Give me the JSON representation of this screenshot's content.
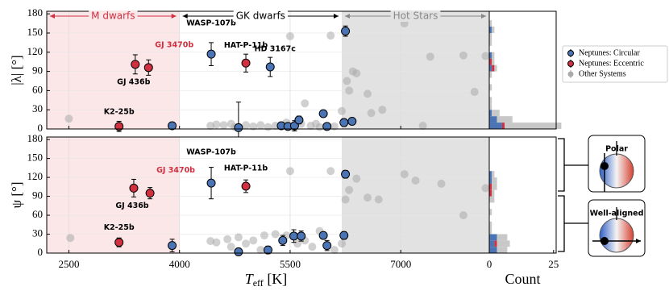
{
  "chart_data": [
    {
      "type": "scatter",
      "y_label": "|λ| [°]",
      "xlim": [
        2200,
        8200
      ],
      "ylim": [
        0,
        184
      ],
      "yticks": [
        0,
        30,
        60,
        90,
        120,
        150,
        180
      ],
      "xticks": [
        2500,
        4000,
        5500,
        7000
      ],
      "grid": true,
      "series": [
        {
          "name": "Neptunes: Circular",
          "color": "#4a74b4",
          "x": [
            3900,
            4430,
            4800,
            5230,
            5380,
            5470,
            5560,
            5620,
            5950,
            6000,
            6230,
            6250,
            6340
          ],
          "values": [
            5,
            117,
            2,
            97,
            5,
            4,
            5,
            14,
            24,
            4,
            10,
            153,
            12
          ],
          "errors": [
            4,
            18,
            40,
            15,
            4,
            3,
            8,
            6,
            5,
            4,
            6,
            8,
            5
          ],
          "point_labels": [
            null,
            "WASP-107b",
            null,
            "HD 3167c",
            null,
            null,
            null,
            null,
            null,
            null,
            null,
            null,
            null
          ]
        },
        {
          "name": "Neptunes: Eccentric",
          "color": "#d03040",
          "x": [
            3180,
            3400,
            3580,
            4900
          ],
          "values": [
            4,
            101,
            96,
            103
          ],
          "errors": [
            8,
            15,
            12,
            14
          ],
          "point_labels": [
            "K2-25b",
            "GJ 436b",
            "GJ 3470b",
            "HAT-P-11b"
          ]
        },
        {
          "name": "Other Systems",
          "color": "#aaaaaa",
          "x": [
            2500,
            4420,
            4500,
            4600,
            4700,
            4750,
            4900,
            5000,
            5100,
            5200,
            5300,
            5450,
            5500,
            5550,
            5650,
            5700,
            5780,
            5850,
            5900,
            6050,
            6100,
            6200,
            6270,
            6300,
            6350,
            6400,
            6550,
            6600,
            6750,
            7050,
            7300,
            7400,
            7850,
            8000,
            8150
          ],
          "values": [
            16,
            5,
            7,
            6,
            8,
            3,
            6,
            4,
            6,
            3,
            5,
            10,
            145,
            2,
            8,
            40,
            5,
            8,
            3,
            146,
            4,
            28,
            75,
            60,
            90,
            87,
            55,
            25,
            30,
            165,
            5,
            113,
            115,
            58,
            114
          ]
        }
      ]
    },
    {
      "type": "scatter",
      "y_label": "ψ [°]",
      "x_label": "T",
      "x_label_sub": "eff",
      "x_label_unit": " [K]",
      "xlim": [
        2200,
        8200
      ],
      "ylim": [
        0,
        184
      ],
      "yticks": [
        0,
        30,
        60,
        90,
        120,
        150,
        180
      ],
      "xticks": [
        2500,
        4000,
        5500,
        7000
      ],
      "grid": true,
      "series": [
        {
          "name": "Neptunes: Circular",
          "color": "#4a74b4",
          "x": [
            3900,
            4430,
            4800,
            5200,
            5400,
            5550,
            5650,
            5950,
            6000,
            6230,
            6250
          ],
          "values": [
            12,
            111,
            2,
            5,
            20,
            27,
            27,
            28,
            12,
            28,
            125
          ],
          "errors": [
            10,
            25,
            3,
            6,
            8,
            10,
            8,
            5,
            8,
            6,
            6
          ],
          "point_labels": [
            null,
            "WASP-107b",
            null,
            null,
            null,
            null,
            null,
            null,
            null,
            null,
            null
          ]
        },
        {
          "name": "Neptunes: Eccentric",
          "color": "#d03040",
          "x": [
            3180,
            3380,
            3600,
            4900
          ],
          "values": [
            17,
            103,
            95,
            106
          ],
          "errors": [
            7,
            14,
            9,
            10
          ],
          "point_labels": [
            "K2-25b",
            "GJ 436b",
            "GJ 3470b",
            "HAT-P-11b"
          ]
        },
        {
          "name": "Other Systems",
          "color": "#aaaaaa",
          "x": [
            2520,
            4420,
            4500,
            4650,
            4700,
            4800,
            4900,
            5000,
            5100,
            5150,
            5300,
            5450,
            5500,
            5600,
            5700,
            5800,
            5900,
            6050,
            6100,
            6200,
            6250,
            6300,
            6400,
            6550,
            6700,
            7050,
            7200,
            7550,
            7850,
            8150
          ],
          "values": [
            24,
            19,
            17,
            22,
            10,
            25,
            15,
            20,
            5,
            28,
            30,
            28,
            130,
            15,
            20,
            10,
            35,
            130,
            5,
            15,
            85,
            100,
            118,
            88,
            85,
            125,
            115,
            110,
            60,
            103
          ]
        }
      ]
    },
    {
      "type": "hist",
      "xlim": [
        0,
        26
      ],
      "ylim": [
        0,
        184
      ],
      "bins": [
        0,
        10,
        20,
        30,
        40,
        50,
        60,
        70,
        80,
        90,
        100,
        110,
        120,
        130,
        140,
        150,
        160,
        170,
        180
      ],
      "series": [
        {
          "color": "#4a74b4",
          "counts": [
            5,
            3,
            1,
            0,
            0,
            0,
            0,
            0,
            0,
            1,
            0,
            1,
            0,
            0,
            0,
            1,
            0,
            0
          ]
        },
        {
          "color": "#d03040",
          "counts": [
            1,
            0,
            0,
            0,
            0,
            0,
            0,
            0,
            0,
            1,
            1,
            0,
            0,
            0,
            0,
            0,
            0,
            0
          ]
        },
        {
          "color": "#c8c8c8",
          "counts": [
            22,
            6,
            3,
            1,
            1,
            0,
            1,
            0,
            1,
            1,
            1,
            1,
            0,
            1,
            1,
            1,
            1,
            0
          ]
        }
      ]
    },
    {
      "type": "hist",
      "xlim": [
        0,
        26
      ],
      "ylim": [
        0,
        184
      ],
      "xticks": [
        0,
        25
      ],
      "x_label": "Count",
      "bins": [
        0,
        10,
        20,
        30,
        40,
        50,
        60,
        70,
        80,
        90,
        100,
        110,
        120,
        130,
        140,
        150,
        160,
        170,
        180
      ],
      "series": [
        {
          "color": "#4a74b4",
          "counts": [
            3,
            2,
            3,
            0,
            0,
            0,
            0,
            0,
            0,
            0,
            0,
            1,
            1,
            0,
            0,
            0,
            0,
            0
          ]
        },
        {
          "color": "#d03040",
          "counts": [
            0,
            1,
            0,
            0,
            0,
            0,
            0,
            0,
            0,
            1,
            1,
            0,
            0,
            0,
            0,
            0,
            0,
            0
          ]
        },
        {
          "color": "#c8c8c8",
          "counts": [
            4,
            5,
            4,
            1,
            1,
            0,
            1,
            0,
            2,
            1,
            2,
            2,
            1,
            0,
            0,
            0,
            0,
            0
          ]
        }
      ]
    }
  ],
  "regions": [
    {
      "label": "M dwarfs",
      "from": 2200,
      "to": 4000,
      "color": "#fbe6e8",
      "text_color": "#d03040"
    },
    {
      "label": "GK dwarfs",
      "from": 4000,
      "to": 6200,
      "color": "#ffffff",
      "text_color": "#000000"
    },
    {
      "label": "Hot Stars",
      "from": 6200,
      "to": 8200,
      "color": "#e2e2e2",
      "text_color": "#888888"
    }
  ],
  "diagrams": {
    "top": "Polar",
    "bottom": "Well-aligned"
  }
}
